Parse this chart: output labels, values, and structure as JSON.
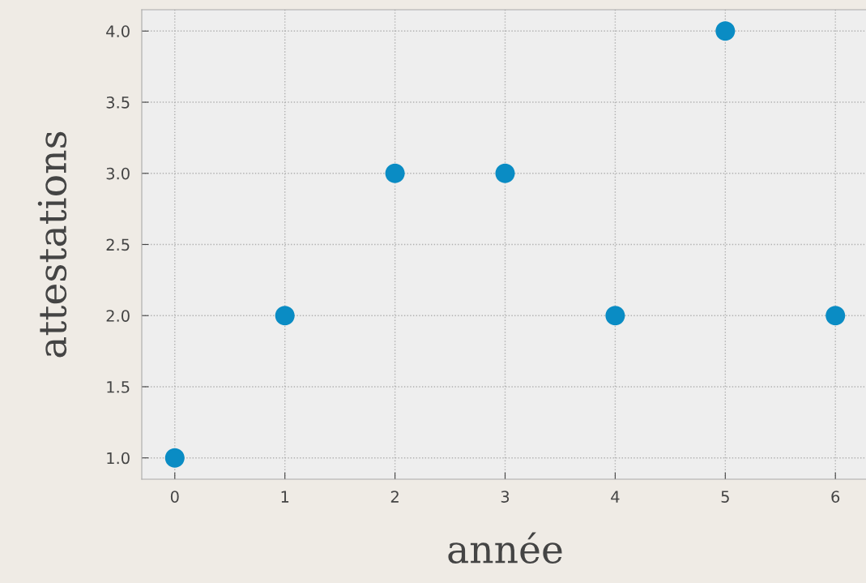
{
  "chart_data": {
    "type": "scatter",
    "xlabel": "année",
    "ylabel": "attestations",
    "x": [
      0,
      1,
      2,
      3,
      4,
      5,
      6
    ],
    "series": [
      {
        "color": "#0a8cc4",
        "values": [
          1,
          2,
          3,
          3,
          2,
          4,
          2
        ]
      }
    ],
    "xlim": [
      -0.3,
      6.3
    ],
    "ylim": [
      0.85,
      4.15
    ],
    "xticks": [
      0,
      1,
      2,
      3,
      4,
      5,
      6
    ],
    "yticks": [
      {
        "value": 1.0,
        "label": "1.0"
      },
      {
        "value": 1.5,
        "label": "1.5"
      },
      {
        "value": 2.0,
        "label": "2.0"
      },
      {
        "value": 2.5,
        "label": "2.5"
      },
      {
        "value": 3.0,
        "label": "3.0"
      },
      {
        "value": 3.5,
        "label": "3.5"
      },
      {
        "value": 4.0,
        "label": "4.0"
      }
    ],
    "grid": true,
    "marker": "circle",
    "legend": false
  }
}
